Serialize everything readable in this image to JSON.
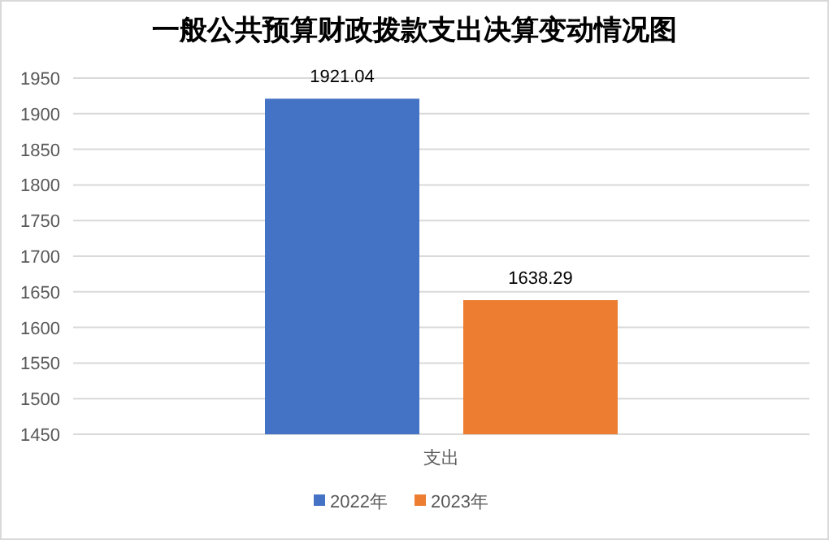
{
  "chart_data": {
    "type": "bar",
    "title": "一般公共预算财政拨款支出决算变动情况图",
    "categories": [
      "支出"
    ],
    "series": [
      {
        "name": "2022年",
        "color": "#4472c4",
        "values": [
          1921.04
        ]
      },
      {
        "name": "2023年",
        "color": "#ed7d31",
        "values": [
          1638.29
        ]
      }
    ],
    "ylim": [
      1450,
      1950
    ],
    "yticks": [
      1450,
      1500,
      1550,
      1600,
      1650,
      1700,
      1750,
      1800,
      1850,
      1900,
      1950
    ],
    "grid": "y",
    "legend": "bottom",
    "data_labels": true
  }
}
